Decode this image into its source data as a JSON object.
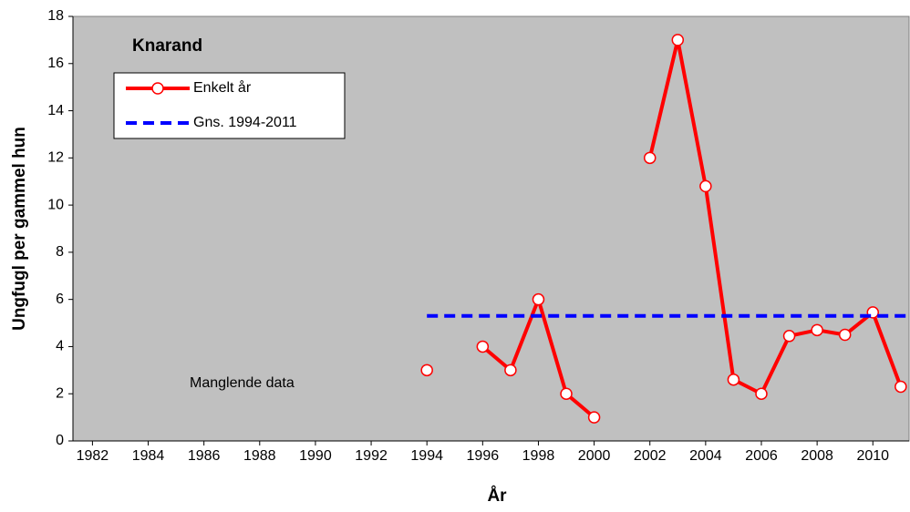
{
  "chart_data": {
    "type": "line",
    "title": "Knarand",
    "x_label": "År",
    "y_label": "Ungfugl per gammel hun",
    "annotation": "Manglende data",
    "series": [
      {
        "name": "Enkelt år",
        "color": "#ff0000",
        "marker": "circle",
        "x": [
          1994,
          1995,
          1996,
          1997,
          1998,
          1999,
          2000,
          2001,
          2002,
          2003,
          2004,
          2005,
          2006,
          2007,
          2008,
          2009,
          2010,
          2011
        ],
        "values": [
          3,
          null,
          4,
          3,
          6,
          2,
          1,
          null,
          12,
          17,
          10.8,
          2.6,
          2,
          4.45,
          4.7,
          4.5,
          5.45,
          2.3
        ]
      },
      {
        "name": "Gns. 1994-2011",
        "color": "#0000ff",
        "dashed": true,
        "x": [
          1994,
          2011.3
        ],
        "values": [
          5.3,
          5.3
        ]
      }
    ],
    "xlim": [
      1981.3,
      2011.3
    ],
    "xticks": [
      1982,
      1984,
      1986,
      1988,
      1990,
      1992,
      1994,
      1996,
      1998,
      2000,
      2002,
      2004,
      2006,
      2008,
      2010
    ],
    "ylim": [
      0,
      18
    ],
    "yticks": [
      0,
      2,
      4,
      6,
      8,
      10,
      12,
      14,
      16,
      18
    ],
    "background": "#c0c0c0"
  }
}
